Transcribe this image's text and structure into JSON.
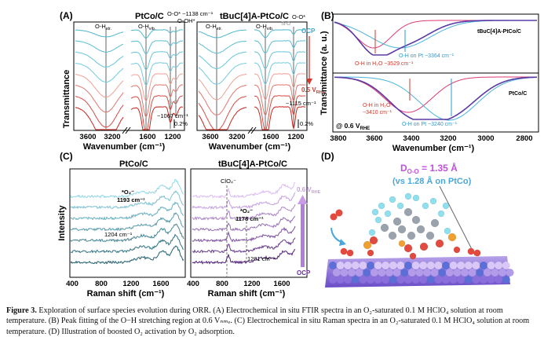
{
  "figure": {
    "panel_labels": [
      "(A)",
      "(B)",
      "(C)",
      "(D)"
    ],
    "panelA": {
      "left_title": "PtCo/C",
      "right_title": "tBuC[4]A-PtCo/C",
      "ylabel": "Transmittance",
      "xlabel": "Wavenumber (cm⁻¹)",
      "ticks": [
        "3600",
        "3200",
        "1600",
        "1200",
        "3600",
        "3200",
        "1600",
        "1200"
      ],
      "ann_left": [
        "O-H",
        "str.",
        "O-H",
        "vib.",
        "O-O* ~1138 cm⁻¹",
        "O-OH*",
        "Si-O",
        "~1067 cm⁻¹",
        "0.2%"
      ],
      "ann_right": [
        "O-H",
        "str.",
        "O-H",
        "vib.",
        "Si-O",
        "O-O*",
        "OCP",
        "0.5 V",
        "RHE",
        "~1115 cm⁻¹",
        "0.2%"
      ],
      "chart_data": {
        "type": "line",
        "title": "Electrochemical in situ FTIR spectra",
        "xlabel": "Wavenumber (cm-1)",
        "ylabel": "Transmittance",
        "x_ticks": [
          3600,
          3200,
          1600,
          1200
        ],
        "series_count": 8,
        "potential_range": [
          "OCP",
          "0.5 V_RHE"
        ],
        "bands": [
          {
            "label": "O-H str.",
            "x": 3300
          },
          {
            "label": "O-H vib.",
            "x": 1620
          },
          {
            "label": "O-O* (PtCo/C)",
            "x": 1138
          },
          {
            "label": "Si-O (PtCo/C)",
            "x": 1067
          },
          {
            "label": "O-O* (tBuC[4]A-PtCo/C)",
            "x": 1115
          }
        ]
      }
    },
    "panelB": {
      "ylabel": "Transmittance (a. u.)",
      "xlabel": "Wavenumber (cm⁻¹)",
      "ticks": [
        "3800",
        "3600",
        "3400",
        "3200",
        "3000",
        "2800"
      ],
      "top_sample": "tBuC[4]A-PtCo/C",
      "bottom_sample": "PtCo/C",
      "top_labels": [
        "O-H on Pt ~3364 cm⁻¹",
        "O-H in H₂O ~3529 cm⁻¹"
      ],
      "bottom_labels": [
        "O-H in H₂O",
        "~3410 cm⁻¹",
        "O-H on Pt ~3240 cm⁻¹"
      ],
      "potential": "@ 0.6 V",
      "potential_sub": "RHE",
      "chart_data": {
        "type": "line",
        "title": "Peak fitting of O-H stretching region at 0.6 V_RHE",
        "xlabel": "Wavenumber (cm-1)",
        "ylabel": "Transmittance (a. u.)",
        "x_range": [
          3800,
          2800
        ],
        "series": [
          {
            "name": "tBuC[4]A-PtCo/C O-H in H2O",
            "center": 3529
          },
          {
            "name": "tBuC[4]A-PtCo/C O-H on Pt",
            "center": 3364
          },
          {
            "name": "PtCo/C O-H in H2O",
            "center": 3410
          },
          {
            "name": "PtCo/C O-H on Pt",
            "center": 3240
          }
        ]
      }
    },
    "panelC": {
      "left_title": "PtCo/C",
      "right_title": "tBuC[4]A-PtCo/C",
      "ylabel": "Intensity",
      "xlabel": "Raman shift (cm⁻¹)",
      "ticks": [
        "400",
        "800",
        "1200",
        "1600",
        "400",
        "800",
        "1200",
        "1600"
      ],
      "ann_left": [
        "*O₂⁻",
        "1193 cm⁻¹",
        "1204 cm⁻¹"
      ],
      "ann_right": [
        "ClO₄⁻",
        "*O₂⁻",
        "1178 cm⁻¹",
        "1201 cm⁻¹",
        "0.6 V",
        "RHE",
        "OCP"
      ],
      "chart_data": {
        "type": "line",
        "title": "Electrochemical in situ Raman spectra",
        "xlabel": "Raman shift (cm-1)",
        "ylabel": "Intensity",
        "x_ticks": [
          400,
          800,
          1200,
          1600
        ],
        "series_count": 7,
        "potential_range": [
          "OCP",
          "0.6 V_RHE"
        ],
        "bands": [
          {
            "label": "*O2- (PtCo/C)",
            "x": 1193
          },
          {
            "label": "PtCo/C",
            "x": 1204
          },
          {
            "label": "ClO4-",
            "x": 930
          },
          {
            "label": "*O2- (tBuC[4]A-PtCo/C)",
            "x": 1178
          },
          {
            "label": "tBuC[4]A-PtCo/C",
            "x": 1201
          }
        ]
      }
    },
    "panelD": {
      "title_l1": "D",
      "title_sub": "O-O",
      "title_l1b": " = 1.35 Å",
      "title_l2": "(vs 1.28 Å on PtCo)"
    },
    "colors": {
      "teal_top": "#4fb8cc",
      "teal_bottom": "#1e5f6e",
      "red_top": "#f0b0a6",
      "red_bottom": "#c8241c",
      "purple_top": "#d9b8ef",
      "purple_bottom": "#4e1f78",
      "fit_purple": "#5b3aa6",
      "fit_pink": "#d93a76",
      "fit_cyan": "#4ab3d9"
    }
  },
  "caption": {
    "label": "Figure 3.",
    "text": " Exploration of surface species evolution during ORR. (A) Electrochemical in situ FTIR spectra in an O₂-saturated 0.1 M HClO₄ solution at room temperature. (B) Peak fitting of the O−H stretching region at 0.6 Vₙₘₑ. (C) Electrochemical in situ Raman spectra in an O₂-saturated 0.1 M HClO₄ solution at room temperature. (D) Illustration of boosted O₂ activation by O₂ adsorption."
  }
}
